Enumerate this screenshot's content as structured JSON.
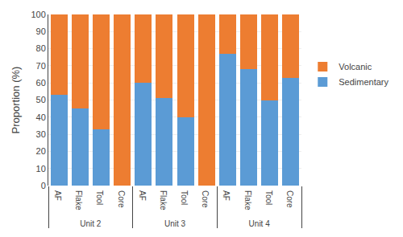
{
  "chart_data": {
    "type": "bar",
    "stacked": true,
    "categories": [
      [
        "Unit 2",
        "AF"
      ],
      [
        "Unit 2",
        "Flake"
      ],
      [
        "Unit 2",
        "Tool"
      ],
      [
        "Unit 2",
        "Core"
      ],
      [
        "Unit 3",
        "AF"
      ],
      [
        "Unit 3",
        "Flake"
      ],
      [
        "Unit 3",
        "Tool"
      ],
      [
        "Unit 3",
        "Core"
      ],
      [
        "Unit 4",
        "AF"
      ],
      [
        "Unit 4",
        "Flake"
      ],
      [
        "Unit 4",
        "Tool"
      ],
      [
        "Unit 4",
        "Core"
      ]
    ],
    "series": [
      {
        "name": "Sedimentary",
        "color": "#5B9BD5",
        "values": [
          53,
          45,
          33,
          0,
          60,
          51,
          40,
          0,
          77,
          68,
          50,
          63
        ]
      },
      {
        "name": "Volcanic",
        "color": "#ED7D31",
        "values": [
          47,
          55,
          67,
          100,
          40,
          49,
          60,
          100,
          23,
          32,
          50,
          37
        ]
      }
    ],
    "ylabel": "Proportion (%)",
    "ylim": [
      0,
      100
    ],
    "yticks": [
      0,
      10,
      20,
      30,
      40,
      50,
      60,
      70,
      80,
      90,
      100
    ],
    "grid": true,
    "legend": "right"
  }
}
